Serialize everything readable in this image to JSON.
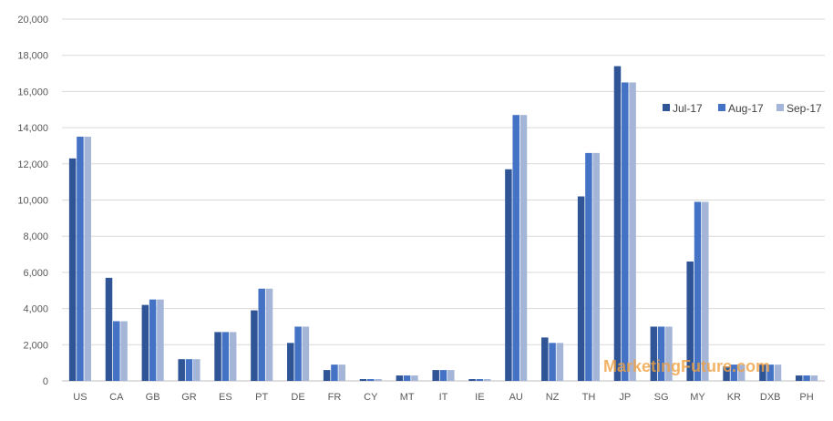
{
  "chart_data": {
    "type": "bar",
    "categories": [
      "US",
      "CA",
      "GB",
      "GR",
      "ES",
      "PT",
      "DE",
      "FR",
      "CY",
      "MT",
      "IT",
      "IE",
      "AU",
      "NZ",
      "TH",
      "JP",
      "SG",
      "MY",
      "KR",
      "DXB",
      "PH"
    ],
    "series": [
      {
        "name": "Jul-17",
        "color": "#2f5597",
        "values": [
          12300,
          5700,
          4200,
          1200,
          2700,
          3900,
          2100,
          600,
          100,
          300,
          600,
          100,
          11700,
          2400,
          10200,
          17400,
          3000,
          6600,
          800,
          900,
          300
        ]
      },
      {
        "name": "Aug-17",
        "color": "#4472c4",
        "values": [
          13500,
          3300,
          4500,
          1200,
          2700,
          5100,
          3000,
          900,
          100,
          300,
          600,
          100,
          14700,
          2100,
          12600,
          16500,
          3000,
          9900,
          900,
          900,
          300
        ]
      },
      {
        "name": "Sep-17",
        "color": "#a5b5d8",
        "values": [
          13500,
          3300,
          4500,
          1200,
          2700,
          5100,
          3000,
          900,
          100,
          300,
          600,
          100,
          14700,
          2100,
          12600,
          16500,
          3000,
          9900,
          900,
          900,
          300
        ]
      }
    ],
    "ylim": [
      0,
      20000
    ],
    "yticks": [
      0,
      2000,
      4000,
      6000,
      8000,
      10000,
      12000,
      14000,
      16000,
      18000,
      20000
    ],
    "ytick_labels": [
      "0",
      "2,000",
      "4,000",
      "6,000",
      "8,000",
      "10,000",
      "12,000",
      "14,000",
      "16,000",
      "18,000",
      "20,000"
    ],
    "grid": true,
    "legend_position": "right",
    "title": "",
    "xlabel": "",
    "ylabel": ""
  },
  "watermark": "MarketingFuture.com"
}
